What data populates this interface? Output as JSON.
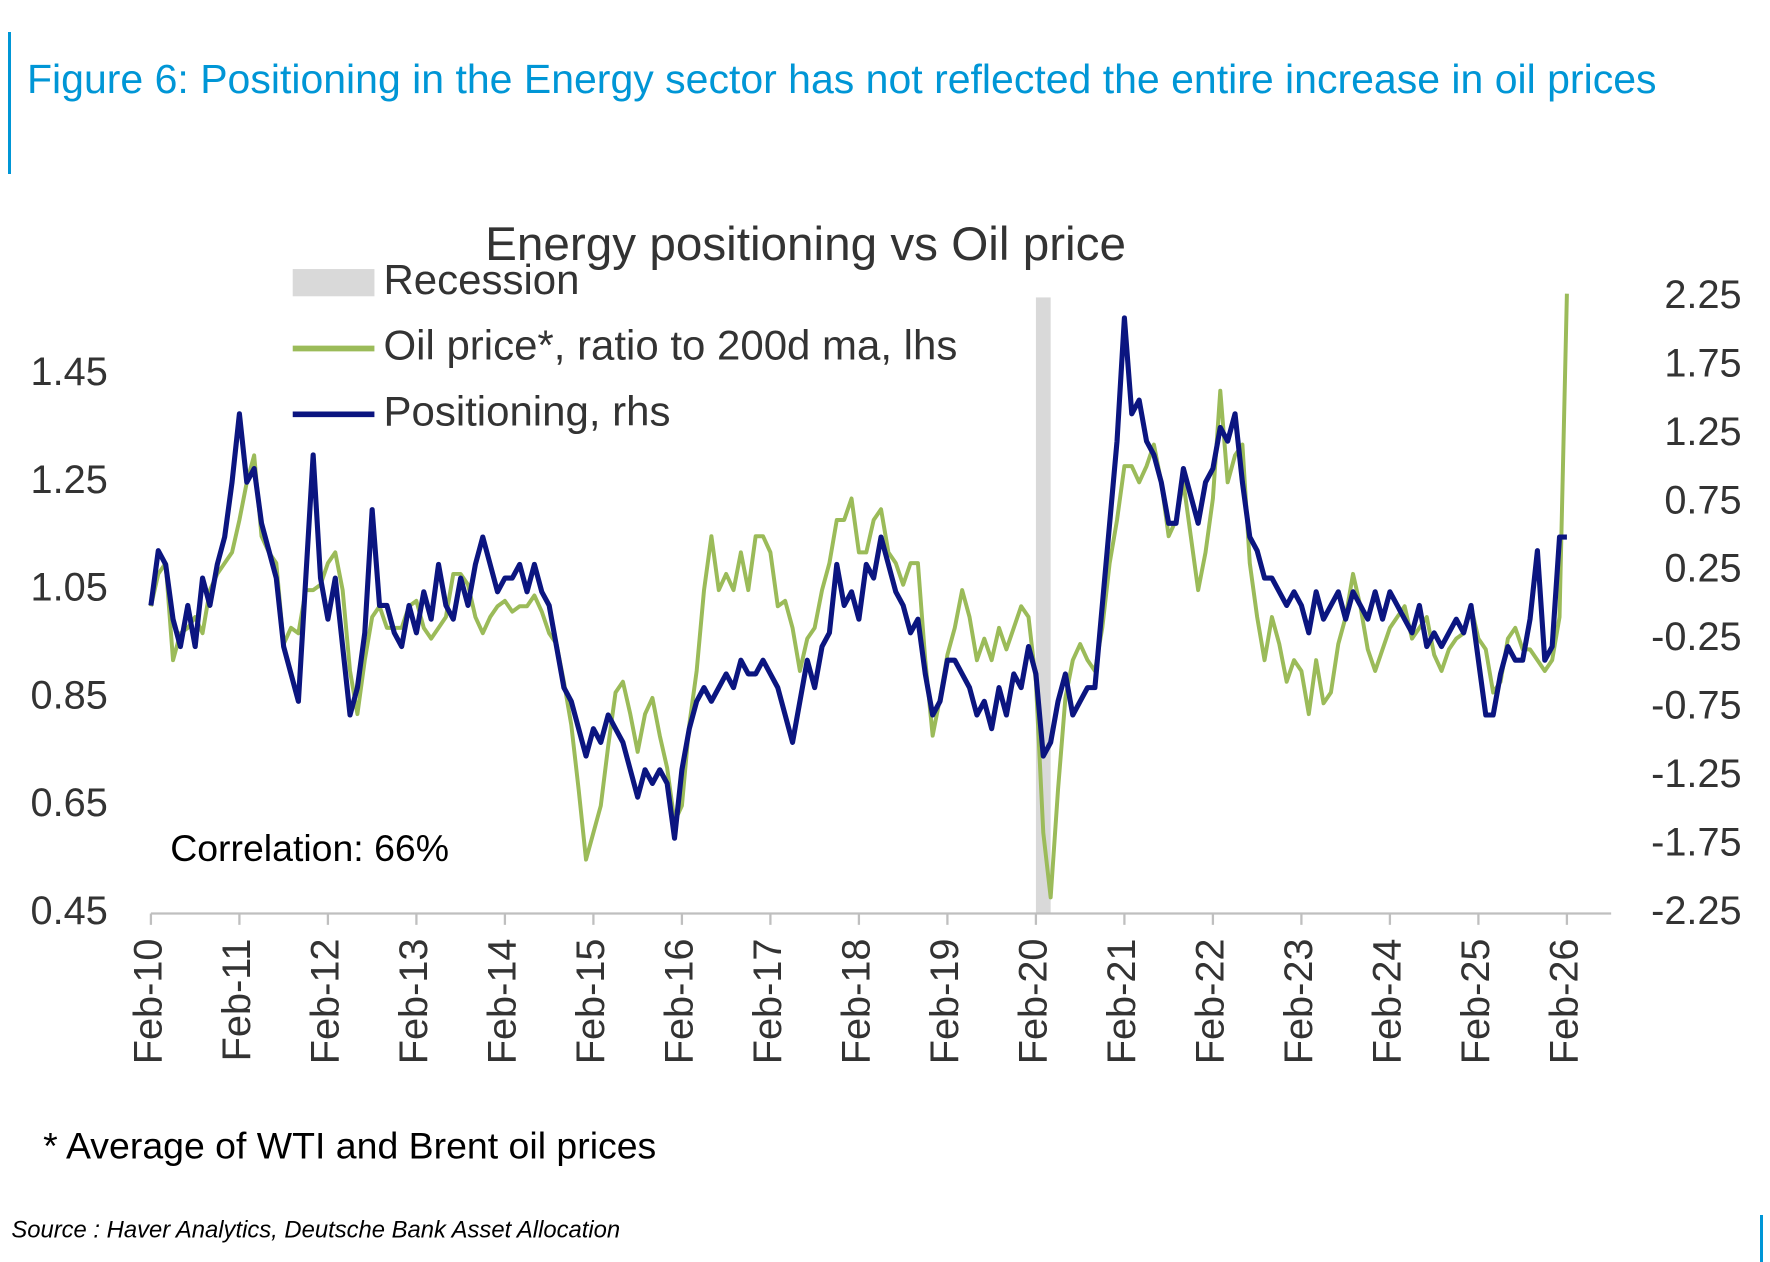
{
  "chart_data": {
    "type": "line",
    "figure_title": "Figure 6: Positioning in the Energy sector has not reflected the entire increase in oil prices",
    "title": "Energy positioning vs Oil price",
    "annotation": "Correlation: 66%",
    "footnote": "* Average of WTI and Brent oil prices",
    "source": "Source : Haver Analytics, Deutsche Bank Asset Allocation",
    "recession": {
      "name": "Recession",
      "color": "#d9d9d9",
      "periods": [
        {
          "start": "2020-02",
          "end": "2020-04"
        }
      ]
    },
    "xlim": [
      "2010-02",
      "2026-08"
    ],
    "xticks": [
      {
        "value": "2010-02",
        "label": "Feb-10"
      },
      {
        "value": "2011-02",
        "label": "Feb-11"
      },
      {
        "value": "2012-02",
        "label": "Feb-12"
      },
      {
        "value": "2013-02",
        "label": "Feb-13"
      },
      {
        "value": "2014-02",
        "label": "Feb-14"
      },
      {
        "value": "2015-02",
        "label": "Feb-15"
      },
      {
        "value": "2016-02",
        "label": "Feb-16"
      },
      {
        "value": "2017-02",
        "label": "Feb-17"
      },
      {
        "value": "2018-02",
        "label": "Feb-18"
      },
      {
        "value": "2019-02",
        "label": "Feb-19"
      },
      {
        "value": "2020-02",
        "label": "Feb-20"
      },
      {
        "value": "2021-02",
        "label": "Feb-21"
      },
      {
        "value": "2022-02",
        "label": "Feb-22"
      },
      {
        "value": "2023-02",
        "label": "Feb-23"
      },
      {
        "value": "2024-02",
        "label": "Feb-24"
      },
      {
        "value": "2025-02",
        "label": "Feb-25"
      },
      {
        "value": "2026-02",
        "label": "Feb-26"
      }
    ],
    "ylim": [
      0.45,
      1.593
    ],
    "yticks": [
      0.45,
      0.65,
      0.85,
      1.05,
      1.25,
      1.45
    ],
    "y2lim": [
      -2.25,
      2.25
    ],
    "y2ticks": [
      -2.25,
      -1.75,
      -1.25,
      -0.75,
      -0.25,
      0.25,
      0.75,
      1.25,
      1.75,
      2.25
    ],
    "x": [
      "2010-02",
      "2010-03",
      "2010-04",
      "2010-05",
      "2010-06",
      "2010-07",
      "2010-08",
      "2010-09",
      "2010-10",
      "2010-11",
      "2010-12",
      "2011-01",
      "2011-02",
      "2011-03",
      "2011-04",
      "2011-05",
      "2011-06",
      "2011-07",
      "2011-08",
      "2011-09",
      "2011-10",
      "2011-11",
      "2011-12",
      "2012-01",
      "2012-02",
      "2012-03",
      "2012-04",
      "2012-05",
      "2012-06",
      "2012-07",
      "2012-08",
      "2012-09",
      "2012-10",
      "2012-11",
      "2012-12",
      "2013-01",
      "2013-02",
      "2013-03",
      "2013-04",
      "2013-05",
      "2013-06",
      "2013-07",
      "2013-08",
      "2013-09",
      "2013-10",
      "2013-11",
      "2013-12",
      "2014-01",
      "2014-02",
      "2014-03",
      "2014-04",
      "2014-05",
      "2014-06",
      "2014-07",
      "2014-08",
      "2014-09",
      "2014-10",
      "2014-11",
      "2014-12",
      "2015-01",
      "2015-02",
      "2015-03",
      "2015-04",
      "2015-05",
      "2015-06",
      "2015-07",
      "2015-08",
      "2015-09",
      "2015-10",
      "2015-11",
      "2015-12",
      "2016-01",
      "2016-02",
      "2016-03",
      "2016-04",
      "2016-05",
      "2016-06",
      "2016-07",
      "2016-08",
      "2016-09",
      "2016-10",
      "2016-11",
      "2016-12",
      "2017-01",
      "2017-02",
      "2017-03",
      "2017-04",
      "2017-05",
      "2017-06",
      "2017-07",
      "2017-08",
      "2017-09",
      "2017-10",
      "2017-11",
      "2017-12",
      "2018-01",
      "2018-02",
      "2018-03",
      "2018-04",
      "2018-05",
      "2018-06",
      "2018-07",
      "2018-08",
      "2018-09",
      "2018-10",
      "2018-11",
      "2018-12",
      "2019-01",
      "2019-02",
      "2019-03",
      "2019-04",
      "2019-05",
      "2019-06",
      "2019-07",
      "2019-08",
      "2019-09",
      "2019-10",
      "2019-11",
      "2019-12",
      "2020-01",
      "2020-02",
      "2020-03",
      "2020-04",
      "2020-05",
      "2020-06",
      "2020-07",
      "2020-08",
      "2020-09",
      "2020-10",
      "2020-11",
      "2020-12",
      "2021-01",
      "2021-02",
      "2021-03",
      "2021-04",
      "2021-05",
      "2021-06",
      "2021-07",
      "2021-08",
      "2021-09",
      "2021-10",
      "2021-11",
      "2021-12",
      "2022-01",
      "2022-02",
      "2022-03",
      "2022-04",
      "2022-05",
      "2022-06",
      "2022-07",
      "2022-08",
      "2022-09",
      "2022-10",
      "2022-11",
      "2022-12",
      "2023-01",
      "2023-02",
      "2023-03",
      "2023-04",
      "2023-05",
      "2023-06",
      "2023-07",
      "2023-08",
      "2023-09",
      "2023-10",
      "2023-11",
      "2023-12",
      "2024-01",
      "2024-02",
      "2024-03",
      "2024-04",
      "2024-05",
      "2024-06",
      "2024-07",
      "2024-08",
      "2024-09",
      "2024-10",
      "2024-11",
      "2024-12",
      "2025-01",
      "2025-02",
      "2025-03",
      "2025-04",
      "2025-05",
      "2025-06",
      "2025-07",
      "2025-08",
      "2025-09",
      "2025-10",
      "2025-11",
      "2025-12",
      "2026-01",
      "2026-02"
    ],
    "series": [
      {
        "name": "Oil price*, ratio to 200d ma, lhs",
        "color": "#9bbb59",
        "values": [
          1.02,
          1.08,
          1.1,
          0.92,
          0.97,
          0.98,
          1.0,
          0.97,
          1.05,
          1.08,
          1.1,
          1.12,
          1.18,
          1.25,
          1.3,
          1.15,
          1.12,
          1.1,
          0.95,
          0.98,
          0.97,
          1.05,
          1.05,
          1.06,
          1.1,
          1.12,
          1.05,
          0.9,
          0.82,
          0.92,
          1.0,
          1.02,
          0.98,
          0.98,
          0.98,
          1.02,
          1.03,
          0.98,
          0.96,
          0.98,
          1.0,
          1.08,
          1.08,
          1.06,
          1.0,
          0.97,
          1.0,
          1.02,
          1.03,
          1.01,
          1.02,
          1.02,
          1.04,
          1.01,
          0.97,
          0.95,
          0.88,
          0.8,
          0.68,
          0.55,
          0.6,
          0.65,
          0.76,
          0.86,
          0.88,
          0.82,
          0.75,
          0.82,
          0.85,
          0.78,
          0.72,
          0.62,
          0.65,
          0.8,
          0.9,
          1.05,
          1.15,
          1.05,
          1.08,
          1.05,
          1.12,
          1.05,
          1.15,
          1.15,
          1.12,
          1.02,
          1.03,
          0.98,
          0.9,
          0.96,
          0.98,
          1.05,
          1.1,
          1.18,
          1.18,
          1.22,
          1.12,
          1.12,
          1.18,
          1.2,
          1.12,
          1.1,
          1.06,
          1.1,
          1.1,
          0.92,
          0.78,
          0.85,
          0.93,
          0.98,
          1.05,
          1.0,
          0.92,
          0.96,
          0.92,
          0.98,
          0.94,
          0.98,
          1.02,
          1.0,
          0.88,
          0.6,
          0.48,
          0.68,
          0.85,
          0.92,
          0.95,
          0.92,
          0.9,
          0.98,
          1.1,
          1.18,
          1.28,
          1.28,
          1.25,
          1.28,
          1.32,
          1.25,
          1.15,
          1.18,
          1.25,
          1.15,
          1.05,
          1.12,
          1.22,
          1.42,
          1.25,
          1.3,
          1.32,
          1.1,
          1.0,
          0.92,
          1.0,
          0.95,
          0.88,
          0.92,
          0.9,
          0.82,
          0.92,
          0.84,
          0.86,
          0.95,
          1.0,
          1.08,
          1.02,
          0.94,
          0.9,
          0.94,
          0.98,
          1.0,
          1.02,
          0.96,
          0.98,
          1.0,
          0.93,
          0.9,
          0.94,
          0.96,
          0.97,
          1.02,
          0.96,
          0.94,
          0.86,
          0.88,
          0.96,
          0.98,
          0.94,
          0.94,
          0.92,
          0.9,
          0.92,
          1.0,
          1.6
        ]
      },
      {
        "name": "Positioning, rhs",
        "color": "#0b1580",
        "axis": "y2",
        "values": [
          0.0,
          0.4,
          0.3,
          -0.1,
          -0.3,
          0.0,
          -0.3,
          0.2,
          0.0,
          0.3,
          0.5,
          0.9,
          1.4,
          0.9,
          1.0,
          0.6,
          0.4,
          0.2,
          -0.3,
          -0.5,
          -0.7,
          0.2,
          1.1,
          0.2,
          -0.1,
          0.2,
          -0.3,
          -0.8,
          -0.6,
          -0.2,
          0.7,
          0.0,
          0.0,
          -0.2,
          -0.3,
          0.0,
          -0.2,
          0.1,
          -0.1,
          0.3,
          0.0,
          -0.1,
          0.2,
          0.0,
          0.3,
          0.5,
          0.3,
          0.1,
          0.2,
          0.2,
          0.3,
          0.1,
          0.3,
          0.1,
          0.0,
          -0.3,
          -0.6,
          -0.7,
          -0.9,
          -1.1,
          -0.9,
          -1.0,
          -0.8,
          -0.9,
          -1.0,
          -1.2,
          -1.4,
          -1.2,
          -1.3,
          -1.2,
          -1.3,
          -1.7,
          -1.2,
          -0.9,
          -0.7,
          -0.6,
          -0.7,
          -0.6,
          -0.5,
          -0.6,
          -0.4,
          -0.5,
          -0.5,
          -0.4,
          -0.5,
          -0.6,
          -0.8,
          -1.0,
          -0.7,
          -0.4,
          -0.6,
          -0.3,
          -0.2,
          0.3,
          0.0,
          0.1,
          -0.1,
          0.3,
          0.2,
          0.5,
          0.3,
          0.1,
          0.0,
          -0.2,
          -0.1,
          -0.5,
          -0.8,
          -0.7,
          -0.4,
          -0.4,
          -0.5,
          -0.6,
          -0.8,
          -0.7,
          -0.9,
          -0.6,
          -0.8,
          -0.5,
          -0.6,
          -0.3,
          -0.5,
          -1.1,
          -1.0,
          -0.7,
          -0.5,
          -0.8,
          -0.7,
          -0.6,
          -0.6,
          0.0,
          0.6,
          1.2,
          2.1,
          1.4,
          1.5,
          1.2,
          1.1,
          0.9,
          0.6,
          0.6,
          1.0,
          0.8,
          0.6,
          0.9,
          1.0,
          1.3,
          1.2,
          1.4,
          0.9,
          0.5,
          0.4,
          0.2,
          0.2,
          0.1,
          0.0,
          0.1,
          0.0,
          -0.2,
          0.1,
          -0.1,
          0.0,
          0.1,
          -0.1,
          0.1,
          0.0,
          -0.1,
          0.1,
          -0.1,
          0.1,
          0.0,
          -0.1,
          -0.2,
          0.0,
          -0.3,
          -0.2,
          -0.3,
          -0.2,
          -0.1,
          -0.2,
          0.0,
          -0.4,
          -0.8,
          -0.8,
          -0.5,
          -0.3,
          -0.4,
          -0.4,
          -0.1,
          0.4,
          -0.4,
          -0.3,
          0.5,
          0.5
        ]
      }
    ]
  }
}
